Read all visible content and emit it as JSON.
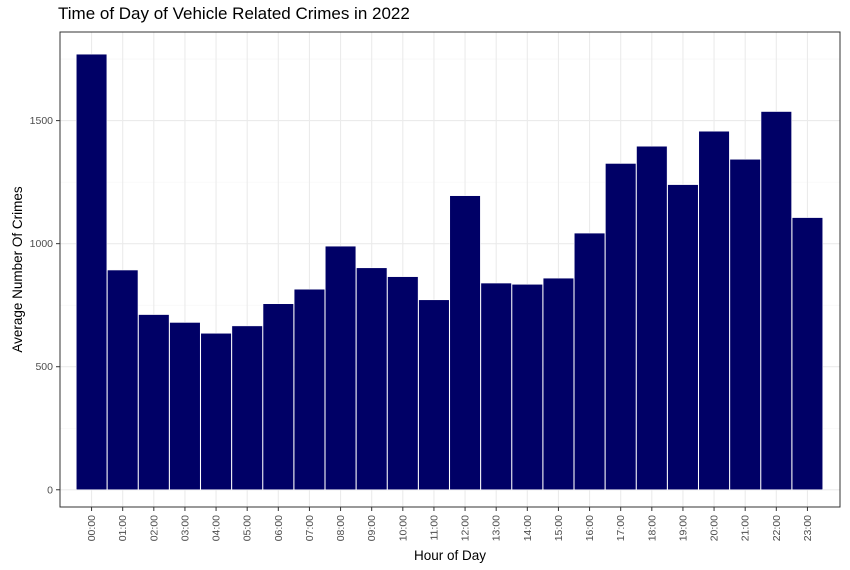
{
  "chart_data": {
    "type": "bar",
    "title": "Time of Day of Vehicle Related Crimes in 2022",
    "xlabel": "Hour of Day",
    "ylabel": "Average Number Of Crimes",
    "categories": [
      "00:00",
      "01:00",
      "02:00",
      "03:00",
      "04:00",
      "05:00",
      "06:00",
      "07:00",
      "08:00",
      "09:00",
      "10:00",
      "11:00",
      "12:00",
      "13:00",
      "14:00",
      "15:00",
      "16:00",
      "17:00",
      "18:00",
      "19:00",
      "20:00",
      "21:00",
      "22:00",
      "23:00"
    ],
    "values": [
      1770,
      893,
      712,
      680,
      636,
      666,
      756,
      815,
      990,
      902,
      866,
      772,
      1195,
      840,
      835,
      860,
      1043,
      1326,
      1396,
      1240,
      1457,
      1343,
      1537,
      1106
    ],
    "yticks": [
      0,
      500,
      1000,
      1500
    ],
    "ylim": [
      -70,
      1860
    ],
    "grid": true,
    "colors": {
      "bar": "#000066",
      "grid_major": "#ebebeb",
      "grid_minor": "#f5f5f5",
      "panel_border": "#333333"
    }
  }
}
